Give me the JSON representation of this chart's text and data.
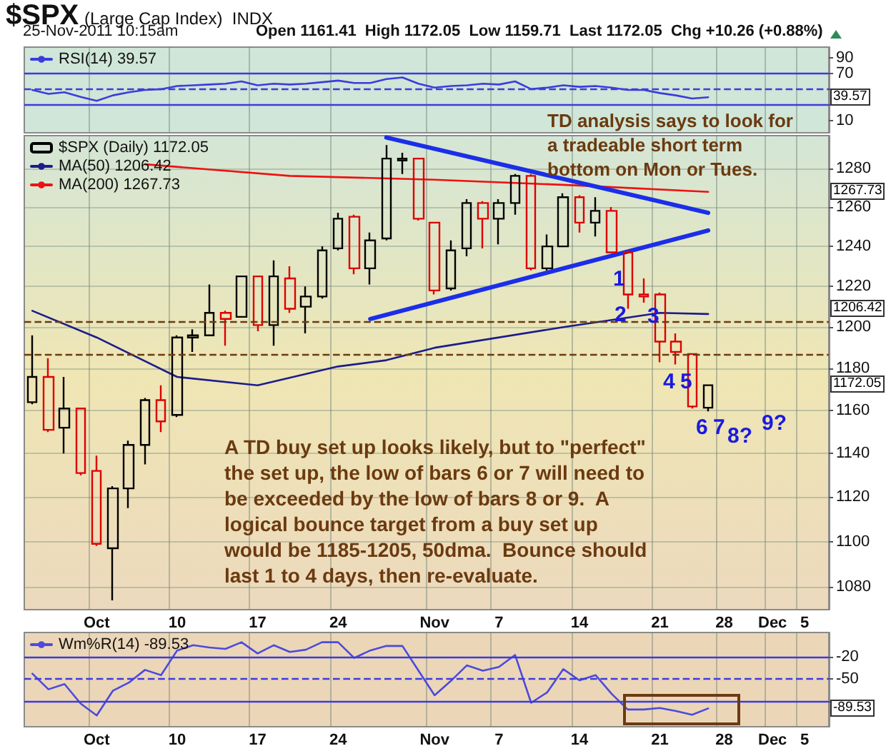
{
  "chart_data": [
    {
      "type": "line",
      "title": "$SPX",
      "subtitle": "(Large Cap Index)  INDX",
      "annotations": [
        "25-Nov-2011 10:15am",
        "Open 1161.41  High 1172.05  Low 1159.71  Last 1172.05  Chg +10.26 (+0.88%)",
        {
          "text": "39.57",
          "y": 39.57
        }
      ],
      "categories": [
        null,
        null,
        null,
        null,
        null,
        null,
        null,
        null,
        null,
        null,
        null,
        null,
        null,
        null,
        null,
        null,
        null,
        null,
        null,
        null,
        null,
        null,
        null,
        null,
        null,
        null,
        null,
        null,
        null,
        null,
        null,
        null,
        null,
        null,
        null,
        null,
        null,
        null,
        null,
        null,
        null,
        null,
        null,
        null,
        null,
        null,
        null,
        null,
        null,
        null
      ],
      "series": [
        {
          "name": "RSI(14) 39.57",
          "color": "#3c3cdc",
          "values": [
            49,
            44,
            46,
            40,
            35,
            42,
            46,
            49,
            50,
            54,
            55,
            56,
            57,
            60,
            55,
            57,
            56,
            57,
            59,
            61,
            58,
            58,
            63,
            65,
            57,
            52,
            54,
            55,
            57,
            56,
            60,
            50,
            52,
            55,
            53,
            54,
            52,
            49,
            49,
            45,
            42,
            38,
            39.57,
            null,
            null,
            null,
            null,
            null,
            null,
            null
          ]
        }
      ],
      "ylim": [
        -6,
        104
      ],
      "yticks": [
        90,
        70,
        {
          "value": 50,
          "label": null
        },
        {
          "value": 30,
          "label": null
        },
        10
      ],
      "ref_lines": [
        {
          "axis": "y",
          "value": 70,
          "color": "#3c3cdc",
          "line_style": "solid"
        },
        {
          "axis": "y",
          "value": 50,
          "color": "#3c3cdc",
          "line_style": "dashed"
        },
        {
          "axis": "y",
          "value": 30,
          "color": "#3c3cdc",
          "line_style": "solid"
        }
      ],
      "grid": "x",
      "legend": "top left",
      "marker": "none",
      "tick_labels": "y"
    },
    {
      "type": "candlestick",
      "log": true,
      "annotations": [
        "TD analysis says to look for\na tradeable short term\nbottom on Mon or Tues.",
        "A TD buy set up looks likely, but to \"perfect\"\nthe set up, the low of bars 6 or 7 will need to\nbe exceeded by the low of bars 8 or 9.  A\nlogical bounce target from a buy set up\nwould be 1185-1205, 50dma.  Bounce should\nlast 1 to 4 days, then re-evaluate.",
        "1",
        "2",
        "3",
        "4",
        "5",
        "6",
        "7",
        "8?",
        "9?",
        "1267.73",
        "1206.42",
        "1172.05"
      ],
      "categories": [
        null,
        null,
        null,
        null,
        "Oct",
        null,
        null,
        null,
        null,
        "10",
        null,
        null,
        null,
        null,
        "17",
        null,
        null,
        null,
        null,
        "24",
        null,
        null,
        null,
        null,
        null,
        "Nov",
        null,
        null,
        null,
        "7",
        null,
        null,
        null,
        null,
        "14",
        null,
        null,
        null,
        null,
        "21",
        null,
        null,
        null,
        "28",
        null,
        null,
        "Dec",
        null,
        "5",
        null
      ],
      "series": [
        {
          "name": "$SPX (Daily) 1172.05",
          "ohlc": [
            [
              1164,
              1196,
              1163,
              1176
            ],
            [
              1176,
              1185,
              1150,
              1151
            ],
            [
              1152,
              1176,
              1140,
              1161
            ],
            [
              1161,
              1161,
              1130,
              1131
            ],
            [
              1132,
              1139,
              1098,
              1099
            ],
            [
              1097,
              1125,
              1074,
              1124
            ],
            [
              1124,
              1146,
              1115,
              1144
            ],
            [
              1144,
              1166,
              1135,
              1165
            ],
            [
              1165,
              1172,
              1150,
              1155
            ],
            [
              1158,
              1196,
              1157,
              1195
            ],
            [
              1195,
              1199,
              1188,
              1196
            ],
            [
              1196,
              1221,
              1196,
              1207
            ],
            [
              1207,
              1208,
              1191,
              1204
            ],
            [
              1205,
              1225,
              1205,
              1225
            ],
            [
              1225,
              1225,
              1198,
              1201
            ],
            [
              1201,
              1233,
              1191,
              1225
            ],
            [
              1224,
              1230,
              1207,
              1209
            ],
            [
              1210,
              1220,
              1197,
              1215
            ],
            [
              1215,
              1240,
              1214,
              1238
            ],
            [
              1239,
              1257,
              1238,
              1254
            ],
            [
              1255,
              1256,
              1226,
              1229
            ],
            [
              1229,
              1247,
              1221,
              1243
            ],
            [
              1244,
              1292,
              1243,
              1285
            ],
            [
              1284,
              1288,
              1277,
              1285
            ],
            [
              1285,
              1285,
              1253,
              1254
            ],
            [
              1252,
              1252,
              1216,
              1218
            ],
            [
              1219,
              1243,
              1218,
              1238
            ],
            [
              1239,
              1264,
              1235,
              1262
            ],
            [
              1262,
              1263,
              1239,
              1254
            ],
            [
              1254,
              1264,
              1241,
              1262
            ],
            [
              1262,
              1277,
              1256,
              1276
            ],
            [
              1276,
              1277,
              1228,
              1229
            ],
            [
              1229,
              1246,
              1228,
              1240
            ],
            [
              1240,
              1267,
              1240,
              1265
            ],
            [
              1265,
              1266,
              1247,
              1252
            ],
            [
              1252,
              1265,
              1245,
              1258
            ],
            [
              1258,
              1260,
              1237,
              1237
            ],
            [
              1237,
              1238,
              1209,
              1216
            ],
            [
              1216,
              1224,
              1212,
              1215
            ],
            [
              1216,
              1217,
              1183,
              1193
            ],
            [
              1193,
              1197,
              1182,
              1188
            ],
            [
              1187,
              1187,
              1161,
              1162
            ],
            [
              1161.41,
              1172.05,
              1159.71,
              1172.05
            ],
            null,
            null,
            null,
            null,
            null,
            null,
            null
          ],
          "colors": [
            "#000000",
            "#dd0000",
            "#000000",
            "#dd0000",
            "#dd0000",
            "#000000",
            "#000000",
            "#000000",
            "#dd0000",
            "#000000",
            "#000000",
            "#000000",
            "#dd0000",
            "#000000",
            "#dd0000",
            "#000000",
            "#dd0000",
            "#000000",
            "#000000",
            "#000000",
            "#dd0000",
            "#000000",
            "#000000",
            "#000000",
            "#dd0000",
            "#dd0000",
            "#000000",
            "#000000",
            "#dd0000",
            "#000000",
            "#000000",
            "#dd0000",
            "#000000",
            "#000000",
            "#dd0000",
            "#000000",
            "#dd0000",
            "#dd0000",
            "#dd0000",
            "#dd0000",
            "#dd0000",
            "#dd0000",
            "#000000",
            null,
            null,
            null,
            null,
            null,
            null,
            null
          ]
        },
        {
          "type": "line",
          "name": "MA(50) 1206.42",
          "color": "#1c1c8c",
          "values": [
            1208,
            null,
            null,
            null,
            1195,
            null,
            null,
            null,
            null,
            1176,
            null,
            null,
            null,
            null,
            1172,
            null,
            null,
            null,
            null,
            1181,
            null,
            null,
            1184,
            null,
            null,
            1190,
            null,
            null,
            null,
            null,
            null,
            null,
            null,
            1200,
            null,
            null,
            null,
            null,
            null,
            1207,
            null,
            null,
            1206.42,
            null,
            null,
            null,
            null,
            null,
            null,
            null
          ]
        },
        {
          "type": "line",
          "name": "MA(200) 1267.73",
          "color": "#ee1111",
          "values": [
            null,
            null,
            null,
            null,
            null,
            null,
            null,
            1282,
            null,
            null,
            null,
            null,
            null,
            null,
            null,
            null,
            1276,
            null,
            null,
            null,
            null,
            null,
            null,
            null,
            null,
            1274,
            null,
            null,
            null,
            null,
            null,
            null,
            null,
            null,
            1271,
            null,
            null,
            null,
            null,
            null,
            null,
            null,
            1267.73,
            null,
            null,
            null,
            null,
            null,
            null,
            null
          ]
        },
        {
          "type": "line",
          "color": "#1b2ee8",
          "values": [
            null,
            null,
            null,
            null,
            null,
            null,
            null,
            null,
            null,
            null,
            null,
            null,
            null,
            null,
            null,
            null,
            null,
            null,
            null,
            null,
            null,
            null,
            1296,
            null,
            null,
            null,
            null,
            null,
            null,
            null,
            null,
            null,
            null,
            null,
            null,
            null,
            null,
            null,
            null,
            null,
            null,
            null,
            1257,
            null,
            null,
            null,
            null,
            null,
            null,
            null
          ]
        },
        {
          "type": "line",
          "color": "#1b2ee8",
          "values": [
            null,
            null,
            null,
            null,
            null,
            null,
            null,
            null,
            null,
            null,
            null,
            null,
            null,
            null,
            null,
            null,
            null,
            null,
            null,
            null,
            null,
            1204,
            null,
            null,
            null,
            null,
            null,
            null,
            null,
            null,
            null,
            null,
            null,
            null,
            null,
            null,
            null,
            null,
            null,
            null,
            null,
            null,
            1248,
            null,
            null,
            null,
            null,
            null,
            null,
            null
          ]
        }
      ],
      "ylim": [
        1070,
        1297
      ],
      "yticks": [
        1080,
        1100,
        1120,
        1140,
        1160,
        1180,
        1200,
        1220,
        1240,
        1260,
        1280
      ],
      "ref_lines": [
        {
          "axis": "y",
          "value": 1203,
          "color": "#6b3b12",
          "line_style": "dashed"
        },
        {
          "axis": "y",
          "value": 1187,
          "color": "#6b3b12",
          "line_style": "dashed"
        }
      ],
      "grid": true,
      "legend": "top left",
      "marker": "none"
    },
    {
      "type": "line",
      "annotations": [
        {
          "text": "-89.53",
          "y": -89.53
        }
      ],
      "categories": [
        null,
        null,
        null,
        null,
        "Oct",
        null,
        null,
        null,
        null,
        "10",
        null,
        null,
        null,
        null,
        "17",
        null,
        null,
        null,
        null,
        "24",
        null,
        null,
        null,
        null,
        null,
        "Nov",
        null,
        null,
        null,
        "7",
        null,
        null,
        null,
        null,
        "14",
        null,
        null,
        null,
        null,
        "21",
        null,
        null,
        null,
        "28",
        null,
        null,
        "Dec",
        null,
        "5",
        null
      ],
      "series": [
        {
          "name": "Wm%R(14) -89.53",
          "color": "#4b4bdc",
          "values": [
            -43,
            -64,
            -57,
            -83,
            -99,
            -66,
            -55,
            -38,
            -45,
            -12,
            -5,
            -8,
            -10,
            -1,
            -16,
            -5,
            -14,
            -11,
            -1,
            -1,
            -22,
            -12,
            -6,
            -6,
            -39,
            -72,
            -53,
            -32,
            -39,
            -34,
            -18,
            -82,
            -68,
            -37,
            -52,
            -45,
            -70,
            -91,
            -91,
            -89,
            -93,
            -98,
            -89.53,
            null,
            null,
            null,
            null,
            null,
            null,
            null
          ]
        }
      ],
      "ylim": [
        -114,
        12
      ],
      "yticks": [
        -20,
        -50,
        {
          "value": -80,
          "label": null
        }
      ],
      "ref_lines": [
        {
          "axis": "y",
          "value": -20,
          "color": "#3c3cdc",
          "line_style": "solid"
        },
        {
          "axis": "y",
          "value": -50,
          "color": "#3c3cdc",
          "line_style": "dashed"
        },
        {
          "axis": "y",
          "value": -80,
          "color": "#3c3cdc",
          "line_style": "solid"
        }
      ],
      "grid": "x",
      "legend": "top left",
      "marker": "none"
    }
  ]
}
